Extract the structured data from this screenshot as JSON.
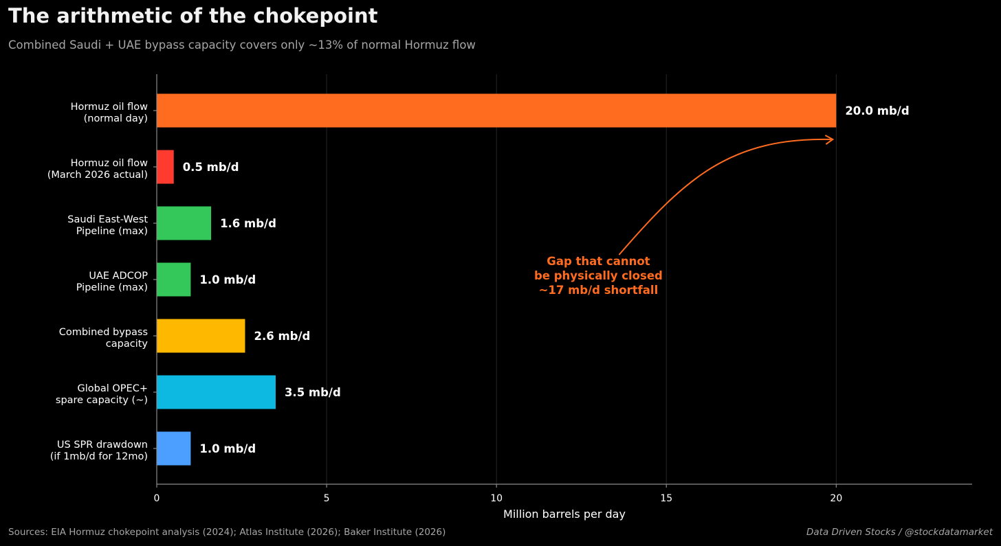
{
  "header": {
    "title": "The arithmetic of the chokepoint",
    "subtitle": "Combined Saudi + UAE bypass capacity covers only ~13% of normal Hormuz flow"
  },
  "footer": {
    "sources": "Sources: EIA Hormuz chokepoint analysis (2024); Atlas Institute (2026); Baker Institute (2026)",
    "credit": "Data Driven Stocks  /  @stockdatamarket"
  },
  "colors": {
    "background": "#000000",
    "grid": "#262626",
    "axis": "#8c8c8c",
    "annotation": "#ff6b1f"
  },
  "chart_data": {
    "type": "bar",
    "orientation": "horizontal",
    "xlabel": "Million barrels per day",
    "xlim": [
      0,
      24
    ],
    "xticks": [
      0,
      5,
      10,
      15,
      20
    ],
    "grid": "vertical",
    "categories": [
      [
        "Hormuz oil flow",
        "(normal day)"
      ],
      [
        "Hormuz oil flow",
        "(March 2026 actual)"
      ],
      [
        "Saudi East-West",
        "Pipeline (max)"
      ],
      [
        "UAE ADCOP",
        "Pipeline (max)"
      ],
      [
        "Combined bypass",
        "capacity"
      ],
      [
        "Global OPEC+",
        "spare capacity (~)"
      ],
      [
        "US SPR drawdown",
        "(if 1mb/d for 12mo)"
      ]
    ],
    "values": [
      20.0,
      0.5,
      1.6,
      1.0,
      2.6,
      3.5,
      1.0
    ],
    "value_labels": [
      "20.0 mb/d",
      "0.5 mb/d",
      "1.6 mb/d",
      "1.0 mb/d",
      "2.6 mb/d",
      "3.5 mb/d",
      "1.0 mb/d"
    ],
    "bar_colors": [
      "#ff6b1f",
      "#ff3b30",
      "#34c759",
      "#34c759",
      "#ffb800",
      "#0db9e0",
      "#4d9fff"
    ],
    "annotation": {
      "lines": [
        "Gap that cannot",
        "be physically closed",
        "~17 mb/d shortfall"
      ],
      "at_x": 13,
      "at_category_index": 3,
      "arrow_to_value": 20.0,
      "arrow_to_category_index": 0
    }
  }
}
